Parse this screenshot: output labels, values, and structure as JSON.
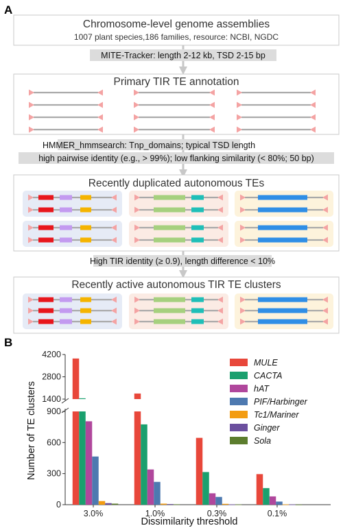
{
  "panel_a": {
    "label": "A",
    "box1": {
      "title": "Chromosome-level genome assemblies",
      "subtitle": "1007 plant species,186 families, resource: NCBI, NGDC"
    },
    "step1": "MITE-Tracker: length 2-12 kb, TSD 2-15 bp",
    "box2": {
      "title": "Primary TIR TE annotation"
    },
    "step2": {
      "line1": "HMMER_hmmsearch: Tnp_domains; typical TSD length",
      "line2": "high pairwise identity (e.g., > 99%); low flanking similarity (< 80%; 50 bp)"
    },
    "box3": {
      "title": "Recently duplicated autonomous TEs"
    },
    "step3": "High TIR identity (≥ 0.9), length difference < 10%",
    "box4": {
      "title": "Recently active autonomous TIR TE clusters"
    },
    "colors": {
      "tir": "#f4a3a3",
      "te_line": "#a9a9a9",
      "domain_red": "#e8161c",
      "domain_purple": "#c39af0",
      "domain_orange": "#f5b400",
      "domain_green": "#a6d07e",
      "domain_teal": "#1fbfb8",
      "domain_blue": "#2f8ee6",
      "bg_blue": "#e6ebf6",
      "bg_pink": "#fbebe4",
      "bg_cream": "#fdf3dc",
      "arrow": "#c8c8c8"
    }
  },
  "panel_b": {
    "label": "B",
    "chart_data": {
      "type": "bar",
      "categories": [
        "3.0%",
        "1.0%",
        "0.3%",
        "0.1%"
      ],
      "xlabel": "Dissimilarity threshold",
      "ylabel": "Number of TE clusters",
      "y_broken": true,
      "ylim_lower": [
        0,
        900
      ],
      "ylim_upper": [
        1400,
        4200
      ],
      "yticks_lower": [
        "0",
        "300",
        "600",
        "900"
      ],
      "yticks_upper": [
        "1400",
        "2800",
        "4200"
      ],
      "legend_position": "top-right",
      "series": [
        {
          "name": "MULE",
          "color": "#e8473a",
          "values": [
            3950,
            1750,
            645,
            295
          ]
        },
        {
          "name": "CACTA",
          "color": "#1aa06e",
          "values": [
            1450,
            775,
            315,
            160
          ]
        },
        {
          "name": "hAT",
          "color": "#b0479c",
          "values": [
            805,
            340,
            110,
            80
          ]
        },
        {
          "name": "PIF/Harbinger",
          "color": "#4d79b0",
          "values": [
            465,
            220,
            75,
            30
          ]
        },
        {
          "name": "Tc1/Mariner",
          "color": "#f39c12",
          "values": [
            35,
            10,
            8,
            3
          ]
        },
        {
          "name": "Ginger",
          "color": "#6b4f9e",
          "values": [
            15,
            6,
            3,
            2
          ]
        },
        {
          "name": "Sola",
          "color": "#5c7d2e",
          "values": [
            10,
            4,
            2,
            1
          ]
        }
      ]
    }
  }
}
